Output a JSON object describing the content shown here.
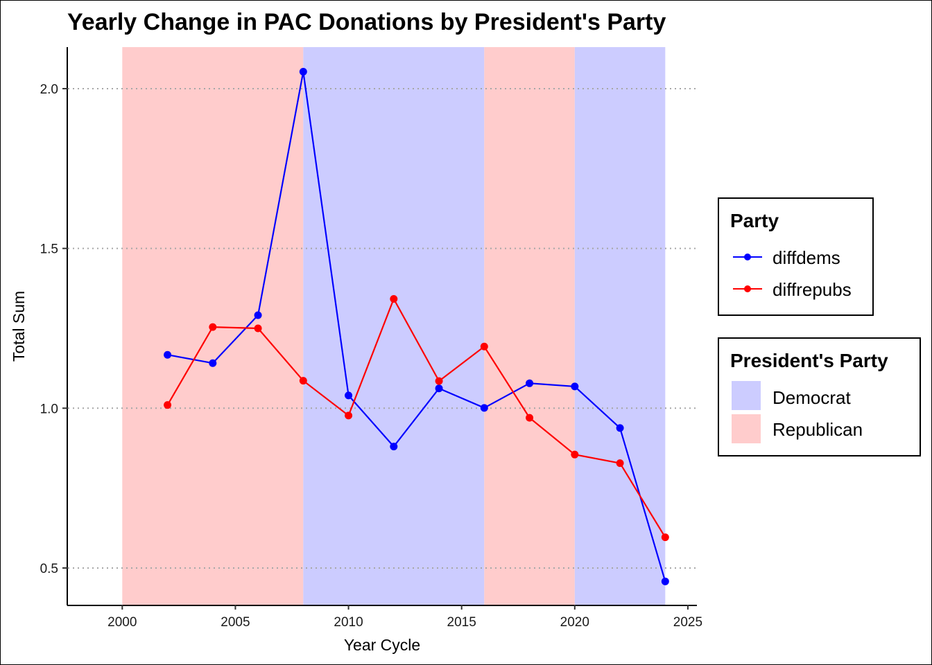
{
  "chart_data": {
    "type": "line",
    "title": "Yearly Change in PAC Donations by President's Party",
    "xlabel": "Year Cycle",
    "ylabel": "Total Sum",
    "xlim": [
      1997.6,
      2025.4
    ],
    "ylim": [
      0.385,
      2.13
    ],
    "xticks": [
      2000,
      2005,
      2010,
      2015,
      2020,
      2025
    ],
    "yticks": [
      0.5,
      1.0,
      1.5,
      2.0
    ],
    "xtick_labels": [
      "2000",
      "2005",
      "2010",
      "2015",
      "2020",
      "2025"
    ],
    "ytick_labels": [
      "0.5",
      "1.0",
      "1.5",
      "2.0"
    ],
    "grid": "horizontal dotted",
    "x": [
      2002,
      2004,
      2006,
      2008,
      2010,
      2012,
      2014,
      2016,
      2018,
      2020,
      2022,
      2024
    ],
    "series": [
      {
        "name": "diffdems",
        "color": "#0000ff",
        "values": [
          1.167,
          1.141,
          1.291,
          2.053,
          1.04,
          0.88,
          1.062,
          1.001,
          1.078,
          1.068,
          0.938,
          0.458
        ]
      },
      {
        "name": "diffrepubs",
        "color": "#ff0000",
        "values": [
          1.01,
          1.254,
          1.25,
          1.086,
          0.977,
          1.342,
          1.085,
          1.193,
          0.97,
          0.855,
          0.828,
          0.596
        ]
      }
    ],
    "bands": [
      {
        "start": 2000,
        "end": 2008,
        "party": "Republican"
      },
      {
        "start": 2008,
        "end": 2016,
        "party": "Democrat"
      },
      {
        "start": 2016,
        "end": 2020,
        "party": "Republican"
      },
      {
        "start": 2020,
        "end": 2024,
        "party": "Democrat"
      }
    ],
    "band_colors": {
      "Democrat": "#ccccff",
      "Republican": "#ffcccc"
    },
    "legend": {
      "placement": "right",
      "party_title": "Party",
      "party_entries": [
        "diffdems",
        "diffrepubs"
      ],
      "president_title": "President's Party",
      "president_entries": [
        "Democrat",
        "Republican"
      ]
    }
  }
}
